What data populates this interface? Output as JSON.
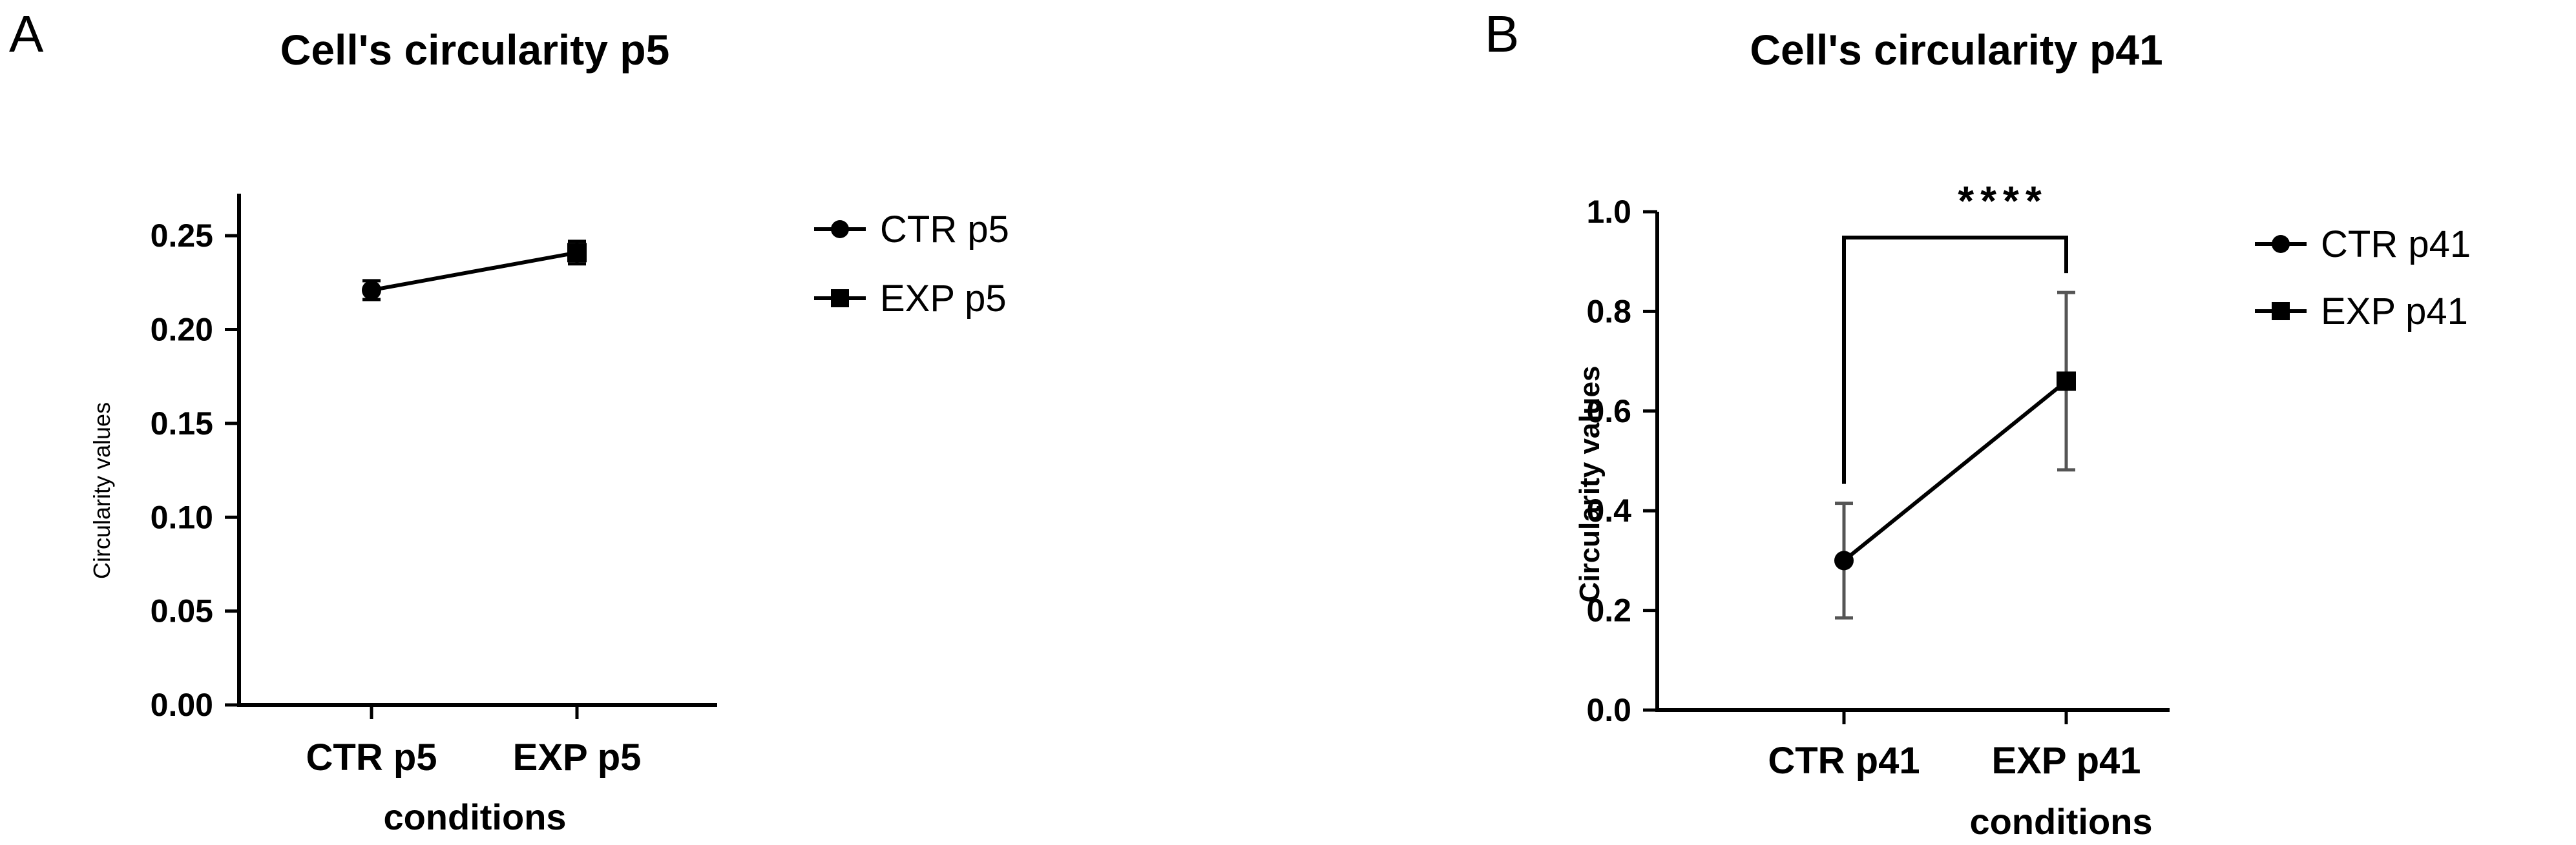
{
  "chart_data": [
    {
      "type": "line",
      "panel_label": "A",
      "title": "Cell's circularity p5",
      "xlabel": "conditions",
      "ylabel": "Circularity values",
      "categories": [
        "CTR p5",
        "EXP p5"
      ],
      "ylim": [
        0,
        0.27
      ],
      "yticks": [
        "0.00",
        "0.05",
        "0.10",
        "0.15",
        "0.20",
        "0.25"
      ],
      "series": [
        {
          "name": "CTR p5",
          "marker": "circle",
          "x": "CTR p5",
          "value": 0.221,
          "error": 0.005
        },
        {
          "name": "EXP p5",
          "marker": "square",
          "x": "EXP p5",
          "value": 0.241,
          "error": 0.006
        }
      ],
      "legend": "right",
      "grid": false,
      "significance": ""
    },
    {
      "type": "line",
      "panel_label": "B",
      "title": "Cell's circularity p41",
      "xlabel": "conditions",
      "ylabel": "Circularity values",
      "categories": [
        "CTR p41",
        "EXP p41"
      ],
      "ylim": [
        0,
        1.0
      ],
      "yticks": [
        "0.0",
        "0.2",
        "0.4",
        "0.6",
        "0.8",
        "1.0"
      ],
      "series": [
        {
          "name": "CTR p41",
          "marker": "circle",
          "x": "CTR p41",
          "value": 0.3,
          "error": 0.115
        },
        {
          "name": "EXP p41",
          "marker": "square",
          "x": "EXP p41",
          "value": 0.66,
          "error": 0.178
        }
      ],
      "legend": "right",
      "grid": false,
      "significance": "****"
    }
  ],
  "colors": {
    "marks": "#000000",
    "error_bars": "#555555"
  }
}
